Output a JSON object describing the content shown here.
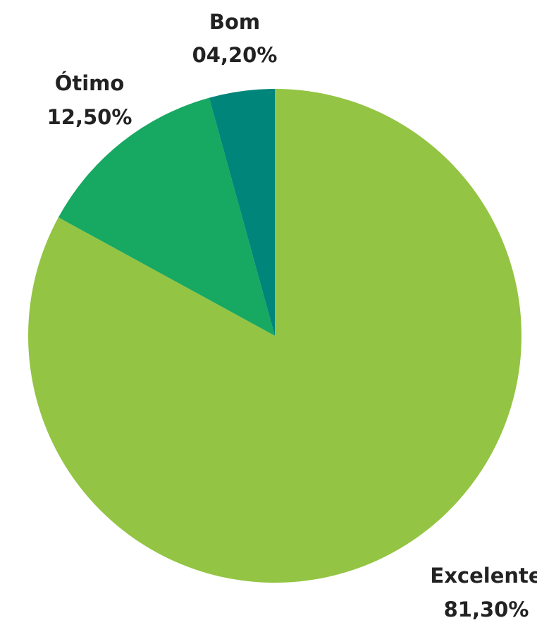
{
  "chart_data": {
    "type": "pie",
    "categories": [
      "Excelente",
      "Ótimo",
      "Bom"
    ],
    "values": [
      81.3,
      12.5,
      4.2
    ],
    "value_labels": [
      "81,30%",
      "12,50%",
      "04,20%"
    ],
    "colors": [
      "#93c443",
      "#17a862",
      "#00857a"
    ]
  }
}
